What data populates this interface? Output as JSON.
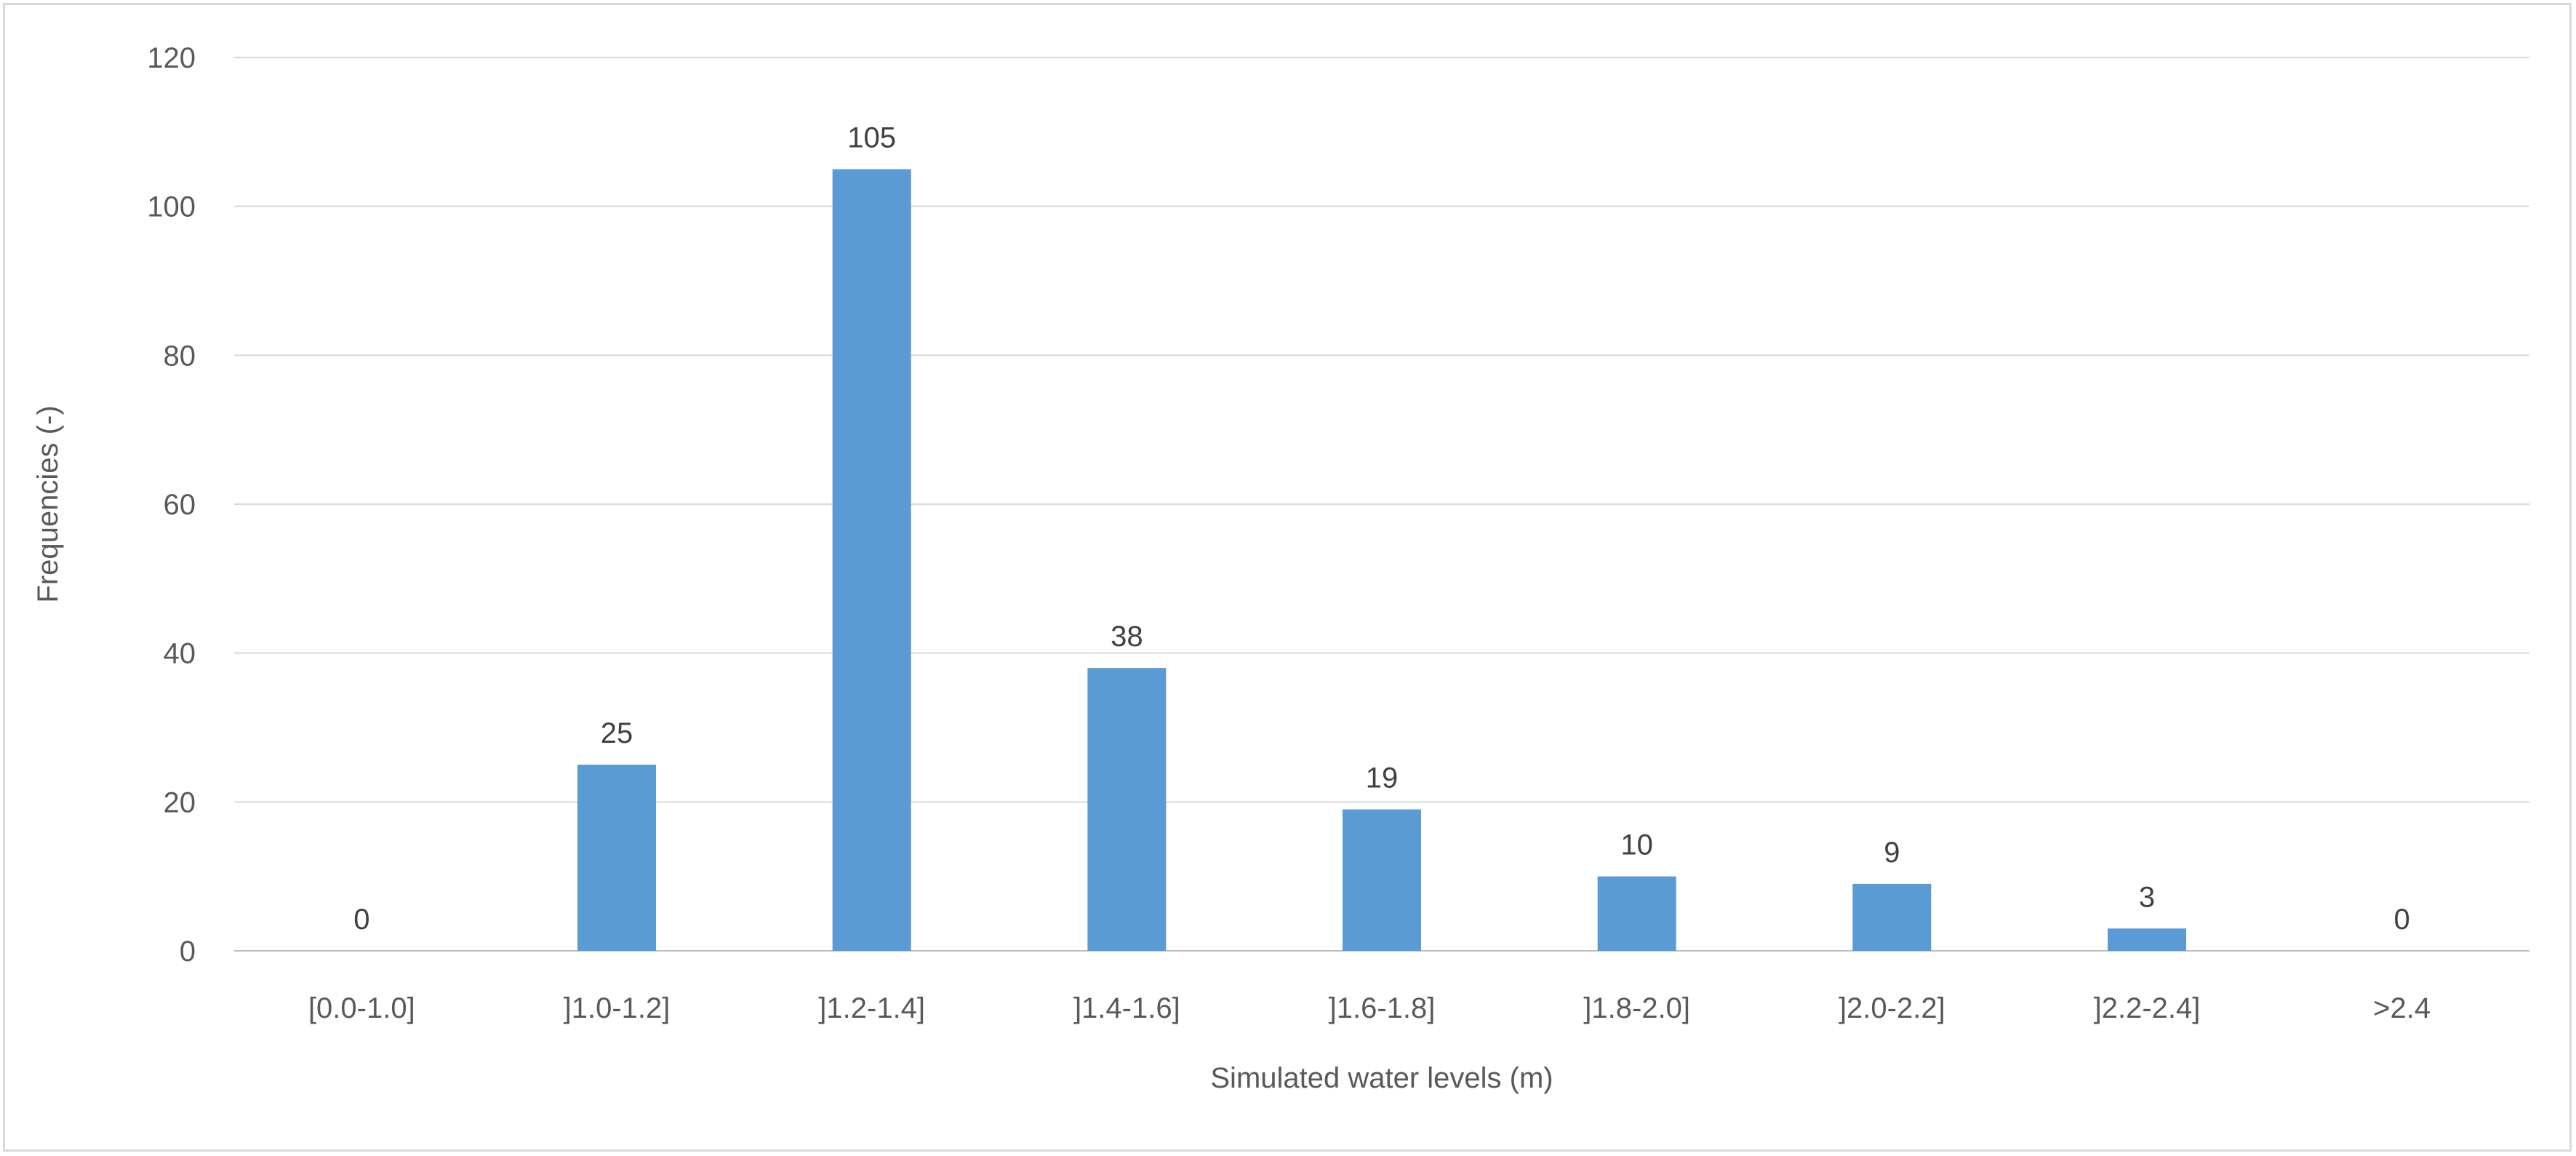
{
  "chart_data": {
    "type": "bar",
    "categories": [
      "[0.0-1.0]",
      "]1.0-1.2]",
      "]1.2-1.4]",
      "]1.4-1.6]",
      "]1.6-1.8]",
      "]1.8-2.0]",
      "]2.0-2.2]",
      "]2.2-2.4]",
      ">2.4"
    ],
    "values": [
      0,
      25,
      105,
      38,
      19,
      10,
      9,
      3,
      0
    ],
    "data_labels": [
      "0",
      "25",
      "105",
      "38",
      "19",
      "10",
      "9",
      "3",
      "0"
    ],
    "xlabel": "Simulated water levels (m)",
    "ylabel": "Frequencies (-)",
    "ylim": [
      0,
      120
    ],
    "yticks": [
      0,
      20,
      40,
      60,
      80,
      100,
      120
    ],
    "ytick_labels": [
      "0",
      "20",
      "40",
      "60",
      "80",
      "100",
      "120"
    ],
    "grid": true,
    "legend": "none",
    "bar_color": "#5b9bd5",
    "grid_color": "#d9d9d9"
  }
}
